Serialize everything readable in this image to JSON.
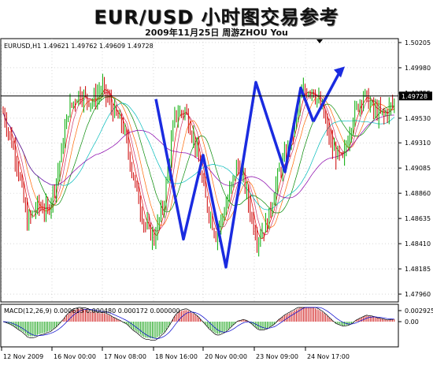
{
  "header": {
    "title": "EUR/USD 小时图交易参考",
    "subtitle": "2009年11月25日   周游ZHOU  You"
  },
  "chart_data": {
    "type": "candlestick",
    "symbol_line": "EURUSD,H1  1.49621 1.49762 1.49609 1.49728",
    "current_price": 1.49728,
    "current_price_label": "1.49728",
    "ylim": [
      1.4789,
      1.5024
    ],
    "y_ticks": [
      "1.50205",
      "1.49980",
      "1.49755",
      "1.49530",
      "1.49310",
      "1.49085",
      "1.48860",
      "1.48635",
      "1.48410",
      "1.48185",
      "1.47960"
    ],
    "x_ticks": [
      "12 Nov 2009",
      "16 Nov 00:00",
      "17 Nov 08:00",
      "18 Nov 16:00",
      "20 Nov 00:00",
      "23 Nov 09:00",
      "24 Nov 17:00"
    ],
    "macd": {
      "label": "MACD(12,26,9) 0.000613 0.000480 0.000172 0.000000",
      "y_ticks": [
        "0.002925",
        "0.00"
      ]
    },
    "zigzag_path": [
      1.497,
      1.4845,
      1.492,
      1.4845,
      1.495,
      1.482,
      1.4985,
      1.4905,
      1.498,
      1.495,
      1.4985
    ],
    "colors": {
      "bull": "#00aa00",
      "bear": "#cc0000",
      "zigzag": "#1a2be0",
      "grid": "#bfbfbf"
    }
  }
}
